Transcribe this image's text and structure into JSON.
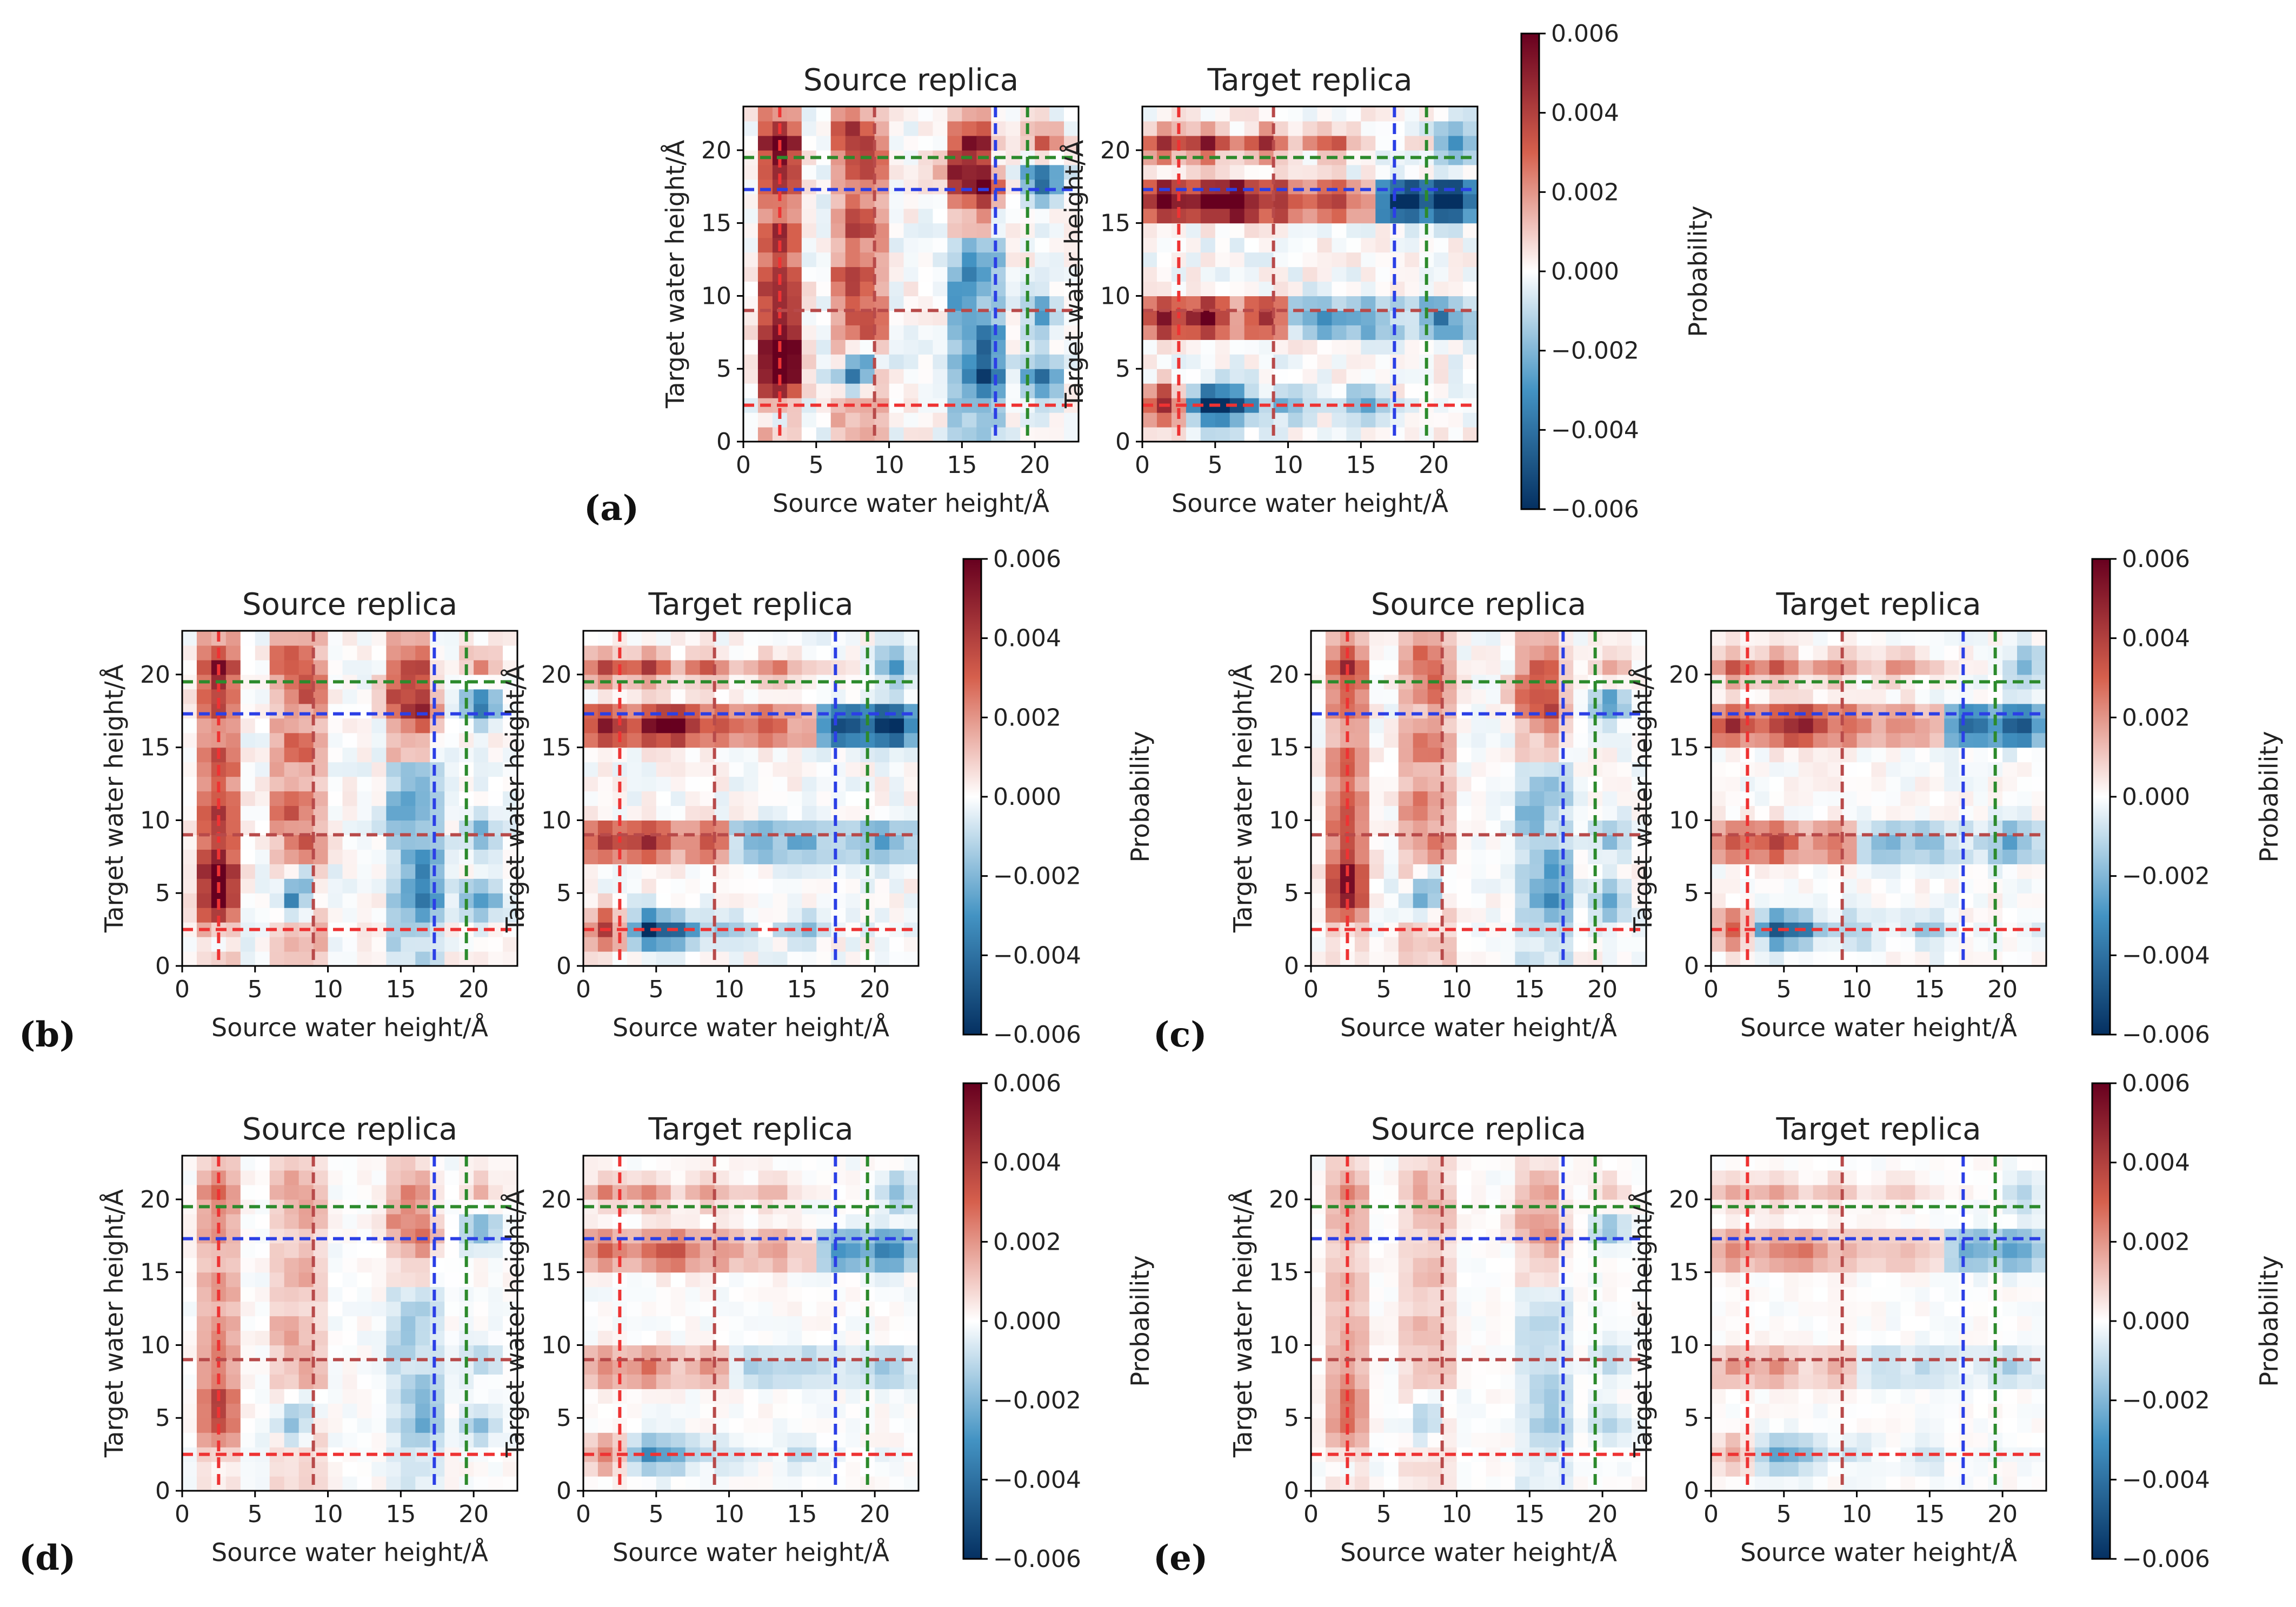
{
  "chart_data": {
    "type": "heatmap",
    "x_axis": {
      "label": "Source water height/Å",
      "range": [
        0,
        23
      ],
      "ticks": [
        "0",
        "5",
        "10",
        "15",
        "20"
      ],
      "tick_values": [
        0,
        5,
        10,
        15,
        20
      ]
    },
    "y_axis": {
      "label": "Target water height/Å",
      "range": [
        0,
        23
      ],
      "ticks": [
        "0",
        "5",
        "10",
        "15",
        "20"
      ],
      "tick_values": [
        0,
        5,
        10,
        15,
        20
      ]
    },
    "colorbar": {
      "label": "Probability",
      "range": [
        -0.006,
        0.006
      ],
      "ticks": [
        "0.006",
        "0.004",
        "0.002",
        "0.000",
        "−0.002",
        "−0.004",
        "−0.006"
      ],
      "tick_values": [
        0.006,
        0.004,
        0.002,
        0.0,
        -0.002,
        -0.004,
        -0.006
      ],
      "colors": {
        "high": "#67001f",
        "mid_high": "#d6604d",
        "mid": "#ffffff",
        "mid_low": "#4393c3",
        "low": "#053061"
      }
    },
    "reference_lines": [
      {
        "value": 2.5,
        "color": "#ee3333"
      },
      {
        "value": 9.0,
        "color": "#b84a4a"
      },
      {
        "value": 17.3,
        "color": "#2b3fe6"
      },
      {
        "value": 19.5,
        "color": "#2c8a2c"
      }
    ],
    "subplot_titles": {
      "source": "Source replica",
      "target": "Target replica"
    },
    "panels": [
      {
        "label": "(a)",
        "intensity": 1.0
      },
      {
        "label": "(b)",
        "intensity": 0.8
      },
      {
        "label": "(c)",
        "intensity": 0.65
      },
      {
        "label": "(d)",
        "intensity": 0.45
      },
      {
        "label": "(e)",
        "intensity": 0.35
      }
    ],
    "source_blobs": [
      {
        "x": 2.5,
        "y": 20.5,
        "v": 0.005
      },
      {
        "x": 2.5,
        "y": 18,
        "v": 0.003
      },
      {
        "x": 2.5,
        "y": 14,
        "v": 0.003
      },
      {
        "x": 2.5,
        "y": 11,
        "v": 0.003
      },
      {
        "x": 2.5,
        "y": 9,
        "v": 0.003
      },
      {
        "x": 2.5,
        "y": 6.5,
        "v": 0.006
      },
      {
        "x": 2.5,
        "y": 4.5,
        "v": 0.006
      },
      {
        "x": 2.5,
        "y": 1.5,
        "v": -0.002
      },
      {
        "x": 7.5,
        "y": 21,
        "v": 0.003
      },
      {
        "x": 8.5,
        "y": 19,
        "v": 0.003
      },
      {
        "x": 8,
        "y": 15,
        "v": 0.003
      },
      {
        "x": 7.5,
        "y": 11,
        "v": 0.003
      },
      {
        "x": 8.5,
        "y": 8,
        "v": 0.003
      },
      {
        "x": 7.5,
        "y": 4.5,
        "v": -0.005
      },
      {
        "x": 8.5,
        "y": 6,
        "v": -0.003
      },
      {
        "x": 16,
        "y": 20.5,
        "v": 0.004
      },
      {
        "x": 14.5,
        "y": 18.5,
        "v": 0.003
      },
      {
        "x": 16.5,
        "y": 17.5,
        "v": 0.005
      },
      {
        "x": 16,
        "y": 12,
        "v": -0.002
      },
      {
        "x": 15,
        "y": 10,
        "v": -0.002
      },
      {
        "x": 16.5,
        "y": 7,
        "v": -0.003
      },
      {
        "x": 16.5,
        "y": 4.5,
        "v": -0.004
      },
      {
        "x": 20.5,
        "y": 20.5,
        "v": 0.003
      },
      {
        "x": 20.5,
        "y": 18,
        "v": -0.005
      },
      {
        "x": 20.5,
        "y": 9,
        "v": -0.003
      },
      {
        "x": 20.5,
        "y": 4.5,
        "v": -0.004
      }
    ],
    "target_blobs": [
      {
        "x": 1.5,
        "y": 20.5,
        "v": 0.004
      },
      {
        "x": 4.5,
        "y": 20.5,
        "v": 0.004
      },
      {
        "x": 8.5,
        "y": 20.5,
        "v": 0.003
      },
      {
        "x": 13,
        "y": 20.5,
        "v": 0.002
      },
      {
        "x": 21.5,
        "y": 20.5,
        "v": -0.004
      },
      {
        "x": 1.5,
        "y": 16.5,
        "v": 0.005
      },
      {
        "x": 4.5,
        "y": 16.5,
        "v": 0.004
      },
      {
        "x": 6.5,
        "y": 16.5,
        "v": 0.006
      },
      {
        "x": 9.5,
        "y": 16.5,
        "v": 0.003
      },
      {
        "x": 13,
        "y": 16.5,
        "v": 0.002
      },
      {
        "x": 18,
        "y": 16.5,
        "v": -0.005
      },
      {
        "x": 21,
        "y": 16.5,
        "v": -0.006
      },
      {
        "x": 1.5,
        "y": 8.5,
        "v": 0.004
      },
      {
        "x": 4.5,
        "y": 8.5,
        "v": 0.005
      },
      {
        "x": 8.5,
        "y": 8.5,
        "v": 0.003
      },
      {
        "x": 12,
        "y": 8.5,
        "v": -0.002
      },
      {
        "x": 15,
        "y": 8.5,
        "v": -0.002
      },
      {
        "x": 20.5,
        "y": 8.5,
        "v": -0.003
      },
      {
        "x": 1.5,
        "y": 2.5,
        "v": 0.006
      },
      {
        "x": 4.5,
        "y": 2.5,
        "v": -0.006
      },
      {
        "x": 6.5,
        "y": 2.5,
        "v": -0.004
      },
      {
        "x": 10,
        "y": 2.5,
        "v": -0.002
      },
      {
        "x": 15,
        "y": 2.5,
        "v": -0.002
      }
    ]
  }
}
